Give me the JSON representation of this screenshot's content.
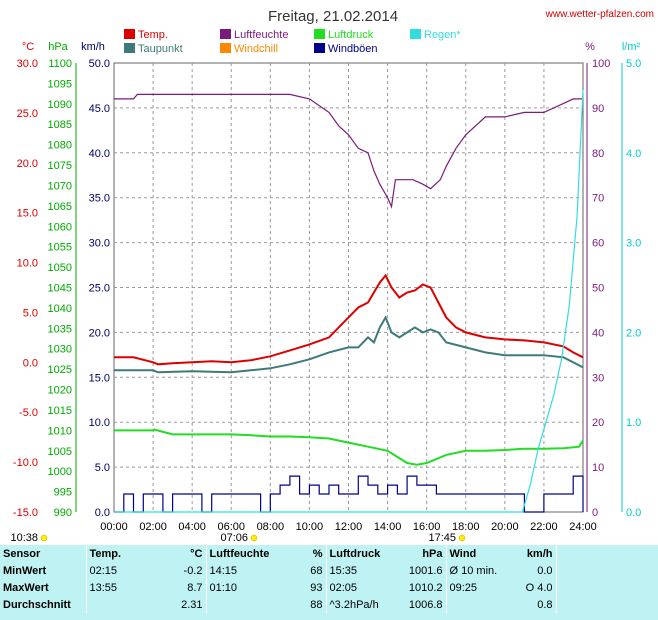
{
  "header": {
    "title": "Freitag, 21.02.2014",
    "site": "www.wetter-pfalzen.com"
  },
  "colors": {
    "temp": "#dd0000",
    "taupunkt": "#3f7a7a",
    "feuchte": "#7a1a7a",
    "windchill": "#ff8800",
    "luftdruck": "#22dd22",
    "windboen": "#000088",
    "regen": "#33dddd",
    "axis_hpa": "#00aa00",
    "axis_temp": "#dd0000",
    "axis_rain": "#00cccc",
    "axis_hum": "#7a1a7a",
    "axis_kmh": "#000066"
  },
  "axis_units": {
    "temp": "°C",
    "hpa": "hPa",
    "kmh": "km/h",
    "hum": "%",
    "rain": "l/m²"
  },
  "legend": [
    {
      "label": "Temp.",
      "color_key": "temp"
    },
    {
      "label": "Taupunkt",
      "color_key": "taupunkt"
    },
    {
      "label": "Luftfeuchte",
      "color_key": "feuchte"
    },
    {
      "label": "Windchill",
      "color_key": "windchill"
    },
    {
      "label": "Luftdruck",
      "color_key": "luftdruck"
    },
    {
      "label": "Windböen",
      "color_key": "windboen"
    },
    {
      "label": "Regen*",
      "color_key": "regen"
    }
  ],
  "sun_times": {
    "left": "10:38",
    "sunrise": "07:06",
    "sunset": "17:45"
  },
  "chart_data": {
    "type": "line",
    "title": "Freitag, 21.02.2014",
    "xlim": [
      0,
      24
    ],
    "x_ticks": [
      "00:00",
      "02:00",
      "04:00",
      "06:00",
      "08:00",
      "10:00",
      "12:00",
      "14:00",
      "16:00",
      "18:00",
      "20:00",
      "22:00",
      "24:00"
    ],
    "axes": {
      "temp": {
        "unit": "°C",
        "ylim": [
          -15,
          30
        ],
        "ticks": [
          "-15.0",
          "-10.0",
          "-5.0",
          "0.0",
          "5.0",
          "10.0",
          "15.0",
          "20.0",
          "25.0",
          "30.0"
        ]
      },
      "hpa": {
        "unit": "hPa",
        "ylim": [
          990,
          1100
        ],
        "ticks": [
          "990",
          "995",
          "1000",
          "1005",
          "1010",
          "1015",
          "1020",
          "1025",
          "1030",
          "1035",
          "1040",
          "1045",
          "1050",
          "1055",
          "1060",
          "1065",
          "1070",
          "1075",
          "1080",
          "1085",
          "1090",
          "1095",
          "1100"
        ]
      },
      "kmh": {
        "unit": "km/h",
        "ylim": [
          0,
          50
        ],
        "ticks": [
          "0.0",
          "5.0",
          "10.0",
          "15.0",
          "20.0",
          "25.0",
          "30.0",
          "35.0",
          "40.0",
          "45.0",
          "50.0"
        ]
      },
      "hum": {
        "unit": "%",
        "ylim": [
          0,
          100
        ],
        "ticks": [
          "0",
          "10",
          "20",
          "30",
          "40",
          "50",
          "60",
          "70",
          "80",
          "90",
          "100"
        ]
      },
      "rain": {
        "unit": "l/m²",
        "ylim": [
          0,
          5
        ],
        "ticks": [
          "0.0",
          "1.0",
          "2.0",
          "3.0",
          "4.0",
          "5.0"
        ]
      }
    },
    "series": [
      {
        "name": "Temp.",
        "axis": "temp",
        "color_key": "temp",
        "x": [
          0,
          1,
          2,
          2.25,
          3,
          4,
          5,
          6,
          7,
          8,
          9,
          10,
          11,
          11.5,
          12,
          12.5,
          13,
          13.3,
          13.6,
          13.9,
          14.2,
          14.6,
          15,
          15.4,
          15.8,
          16.2,
          16.6,
          17,
          17.5,
          18,
          19,
          20,
          21,
          22,
          23,
          23.5,
          24
        ],
        "y": [
          0.5,
          0.5,
          0.0,
          -0.2,
          -0.1,
          0.0,
          0.1,
          0.0,
          0.2,
          0.6,
          1.2,
          1.8,
          2.5,
          3.5,
          4.5,
          5.5,
          6.0,
          7.0,
          8.0,
          8.7,
          7.5,
          6.5,
          7.0,
          7.2,
          7.8,
          7.5,
          6.0,
          4.5,
          3.5,
          3.0,
          2.5,
          2.3,
          2.2,
          2.0,
          1.6,
          1.0,
          0.5
        ]
      },
      {
        "name": "Taupunkt",
        "axis": "temp",
        "color_key": "taupunkt",
        "x": [
          0,
          2,
          2.25,
          4,
          6,
          7,
          8,
          9,
          10,
          11,
          12,
          12.5,
          13,
          13.3,
          13.6,
          13.9,
          14.2,
          14.6,
          15,
          15.4,
          15.8,
          16.2,
          16.6,
          17,
          18,
          19,
          20,
          21,
          22,
          23,
          24
        ],
        "y": [
          -0.8,
          -0.8,
          -1.0,
          -0.9,
          -1.0,
          -0.8,
          -0.6,
          -0.2,
          0.3,
          1.0,
          1.5,
          1.5,
          2.5,
          2.0,
          3.5,
          4.5,
          3.0,
          2.5,
          3.0,
          3.5,
          3.0,
          3.3,
          3.0,
          2.0,
          1.5,
          1.0,
          0.7,
          0.7,
          0.7,
          0.5,
          -0.5
        ]
      },
      {
        "name": "Luftfeuchte",
        "axis": "hum",
        "color_key": "feuchte",
        "x": [
          0,
          1,
          1.2,
          3,
          6,
          9,
          10,
          11,
          11.5,
          12,
          12.5,
          13,
          13.3,
          13.6,
          14,
          14.2,
          14.4,
          14.8,
          15.3,
          15.8,
          16.2,
          16.7,
          17,
          17.5,
          18,
          18.5,
          19,
          20,
          21,
          22,
          23,
          23.5,
          24
        ],
        "y": [
          92,
          92,
          93,
          93,
          93,
          93,
          92,
          89,
          86,
          84,
          81,
          80,
          76,
          73,
          70,
          68,
          74,
          74,
          74,
          73,
          72,
          74,
          77,
          81,
          84,
          86,
          88,
          88,
          89,
          89,
          91,
          92,
          92
        ]
      },
      {
        "name": "Luftdruck",
        "axis": "hpa",
        "color_key": "luftdruck",
        "x": [
          0,
          1,
          2,
          2.05,
          3,
          4,
          5,
          6,
          7,
          8,
          9,
          10,
          11,
          12,
          13,
          14,
          15,
          15.5,
          16,
          17,
          18,
          19,
          20,
          21,
          22,
          23,
          23.8,
          24
        ],
        "y": [
          1010.0,
          1010.0,
          1010.0,
          1010.2,
          1009.0,
          1009.0,
          1009.0,
          1009.0,
          1008.8,
          1008.5,
          1008.5,
          1008.3,
          1008.0,
          1007.0,
          1006.0,
          1005.0,
          1002.0,
          1001.6,
          1002.0,
          1004.0,
          1005.0,
          1005.0,
          1005.2,
          1005.5,
          1005.5,
          1005.6,
          1006.0,
          1007.5
        ]
      },
      {
        "name": "Windböen",
        "axis": "kmh",
        "color_key": "windboen",
        "x": [
          0,
          0.5,
          1,
          1.5,
          2,
          2.5,
          3,
          3.5,
          4,
          4.5,
          5,
          5.5,
          6,
          6.5,
          7,
          7.5,
          8,
          8.5,
          9,
          9.5,
          10,
          10.5,
          11,
          11.5,
          12,
          12.5,
          13,
          13.5,
          14,
          14.5,
          15,
          15.5,
          16,
          16.5,
          17,
          17.5,
          18,
          18.5,
          19,
          19.5,
          20,
          20.5,
          21,
          21.5,
          22,
          22.5,
          23,
          23.5,
          24
        ],
        "y": [
          0,
          2,
          0,
          2,
          2,
          0,
          2,
          2,
          2,
          0,
          2,
          2,
          2,
          2,
          2,
          0,
          2,
          3,
          4,
          2,
          3,
          2,
          3,
          2,
          2,
          4,
          3,
          2,
          3,
          2,
          4,
          3,
          3,
          2,
          2,
          2,
          2,
          2,
          2,
          2,
          2,
          2,
          0,
          0,
          2,
          2,
          2,
          4,
          0
        ]
      },
      {
        "name": "Regen*",
        "axis": "rain",
        "color_key": "regen",
        "x": [
          0,
          20.9,
          21.3,
          21.7,
          22.1,
          22.5,
          22.9,
          23.3,
          23.7,
          24
        ],
        "y": [
          0,
          0,
          0.3,
          0.7,
          1.0,
          1.3,
          1.7,
          2.3,
          3.3,
          4.7
        ]
      }
    ]
  },
  "stats": {
    "headers": {
      "sensor": "Sensor",
      "temp": "Temp.",
      "temp_unit": "°C",
      "hum": "Luftfeuchte",
      "hum_unit": "%",
      "press": "Luftdruck",
      "press_unit": "hPa",
      "wind": "Wind",
      "wind_unit": "km/h"
    },
    "rows": [
      {
        "label": "MinWert",
        "t_time": "02:15",
        "t_val": "-0.2",
        "h_time": "14:15",
        "h_val": "68",
        "p_time": "15:35",
        "p_val": "1001.6",
        "w_label": "Ø 10 min.",
        "w_val": "0.0"
      },
      {
        "label": "MaxWert",
        "t_time": "13:55",
        "t_val": "8.7",
        "h_time": "01:10",
        "h_val": "93",
        "p_time": "02:05",
        "p_val": "1010.2",
        "w_label": "09:25",
        "w_val": "O 4.0"
      },
      {
        "label": "Durchschnitt",
        "t_time": "",
        "t_val": "2.31",
        "h_time": "",
        "h_val": "88",
        "p_time": "^3.2hPa/h",
        "p_val": "1006.8",
        "w_label": "",
        "w_val": "0.8"
      }
    ]
  }
}
